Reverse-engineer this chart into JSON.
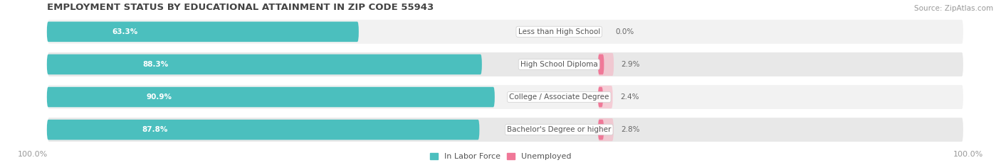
{
  "title": "EMPLOYMENT STATUS BY EDUCATIONAL ATTAINMENT IN ZIP CODE 55943",
  "source": "Source: ZipAtlas.com",
  "categories": [
    "Less than High School",
    "High School Diploma",
    "College / Associate Degree",
    "Bachelor's Degree or higher"
  ],
  "labor_force_pct": [
    63.3,
    88.3,
    90.9,
    87.8
  ],
  "unemployed_pct": [
    0.0,
    2.9,
    2.4,
    2.8
  ],
  "labor_force_color": "#4BBFBE",
  "unemployed_color": "#F07898",
  "unemployed_light_color": "#F8AABB",
  "row_bg_light": "#F2F2F2",
  "row_bg_dark": "#E8E8E8",
  "label_color_labor": "#FFFFFF",
  "label_color_unemployed": "#666666",
  "category_label_color": "#555555",
  "axis_label_color": "#999999",
  "title_color": "#444444",
  "source_color": "#999999",
  "x_left_label": "100.0%",
  "x_right_label": "100.0%",
  "title_fontsize": 9.5,
  "bar_fontsize": 7.5,
  "legend_fontsize": 8,
  "category_fontsize": 7.5,
  "axis_fontsize": 8
}
